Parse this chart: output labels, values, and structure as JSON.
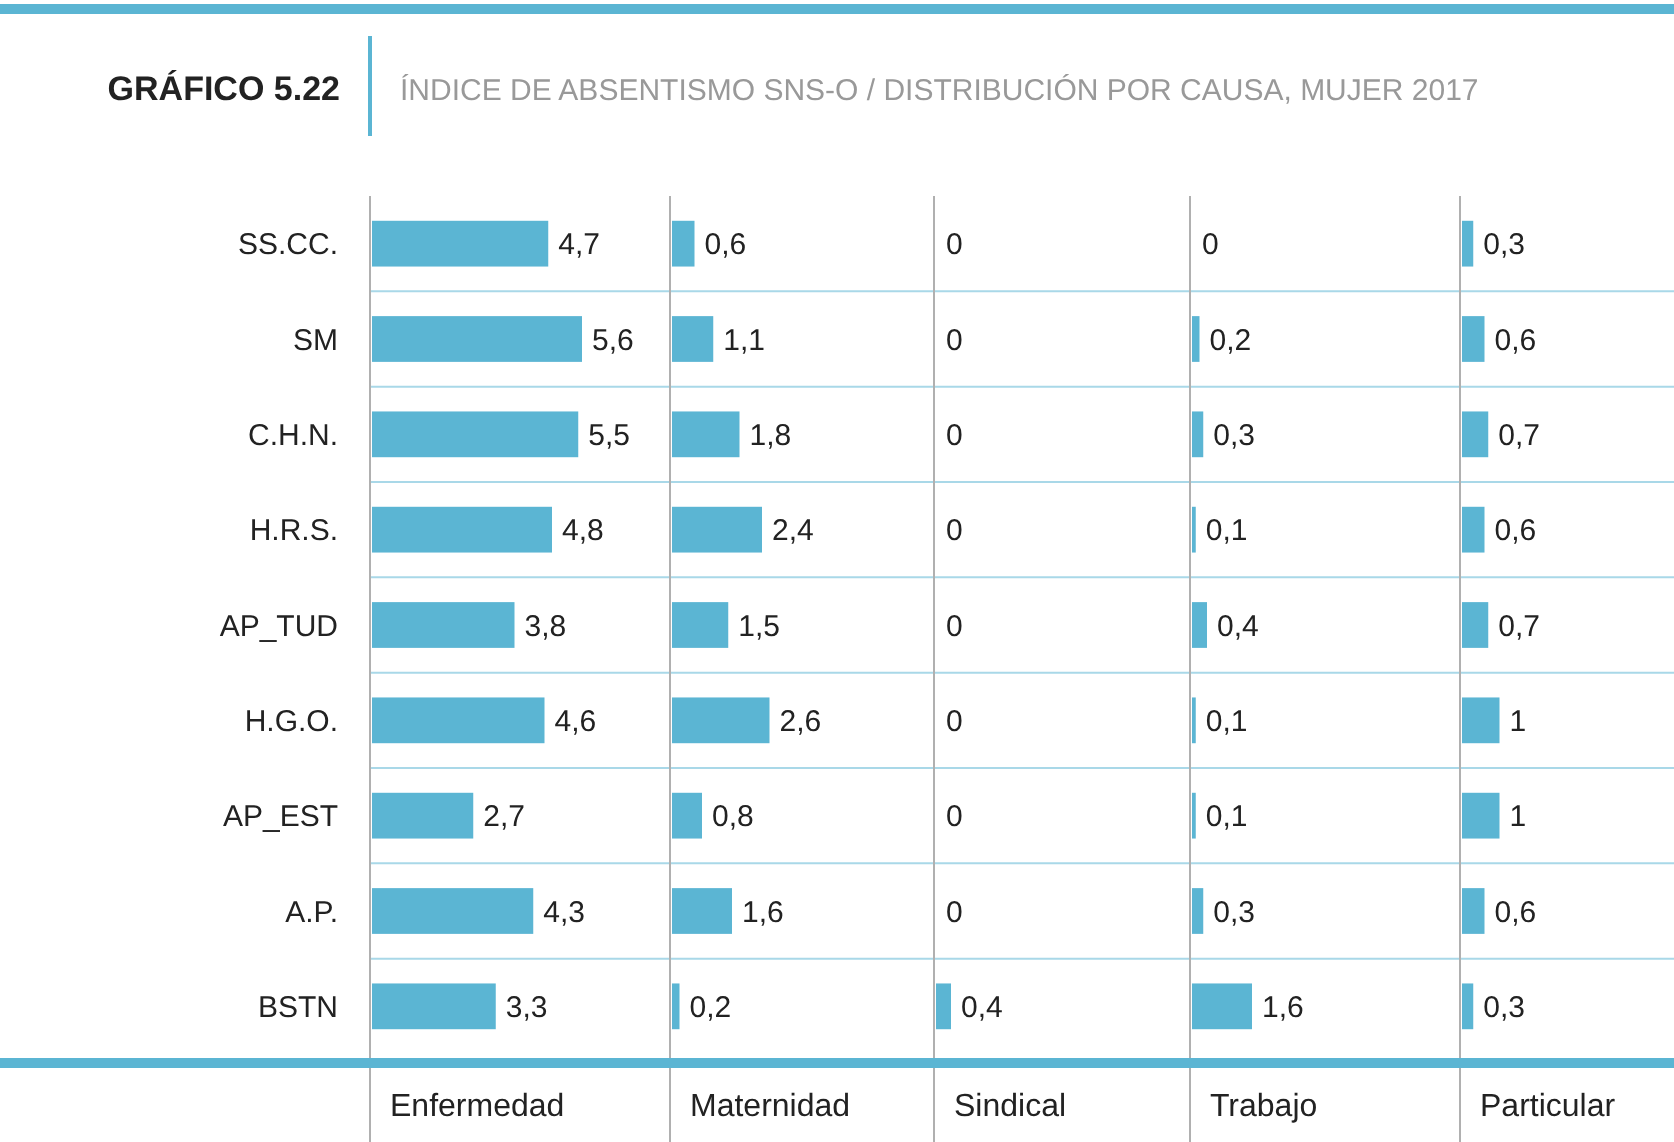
{
  "chart_data": [
    {
      "type": "bar",
      "orientation": "horizontal",
      "title": "GRÁFICO 5.22",
      "subtitle": "ÍNDICE DE ABSENTISMO SNS-O / DISTRIBUCIÓN POR CAUSA, MUJER 2017",
      "xlabel": "Enfermedad",
      "categories": [
        "SS.CC.",
        "SM",
        "C.H.N.",
        "H.R.S.",
        "AP_TUD",
        "H.G.O.",
        "AP_EST",
        "A.P.",
        "BSTN"
      ],
      "values": [
        4.7,
        5.6,
        5.5,
        4.8,
        3.8,
        4.6,
        2.7,
        4.3,
        3.3
      ],
      "value_labels": [
        "4,7",
        "5,6",
        "5,5",
        "4,8",
        "3,8",
        "4,6",
        "2,7",
        "4,3",
        "3,3"
      ],
      "color": "#5bb5d3",
      "grid": "y"
    },
    {
      "type": "bar",
      "orientation": "horizontal",
      "xlabel": "Maternidad",
      "categories": [
        null,
        null,
        null,
        null,
        null,
        null,
        null,
        null,
        null
      ],
      "values": [
        0.6,
        1.1,
        1.8,
        2.4,
        1.5,
        2.6,
        0.8,
        1.6,
        0.2
      ],
      "value_labels": [
        "0,6",
        "1,1",
        "1,8",
        "2,4",
        "1,5",
        "2,6",
        "0,8",
        "1,6",
        "0,2"
      ],
      "color": "#5bb5d3",
      "grid": "y"
    },
    {
      "type": "bar",
      "orientation": "horizontal",
      "xlabel": "Sindical",
      "categories": [
        null,
        null,
        null,
        null,
        null,
        null,
        null,
        null,
        null
      ],
      "values": [
        0,
        0,
        0,
        0,
        0,
        0,
        0,
        0,
        0.4
      ],
      "value_labels": [
        "0",
        "0",
        "0",
        "0",
        "0",
        "0",
        "0",
        "0",
        "0,4"
      ],
      "color": "#5bb5d3",
      "grid": "y"
    },
    {
      "type": "bar",
      "orientation": "horizontal",
      "xlabel": "Trabajo",
      "categories": [
        null,
        null,
        null,
        null,
        null,
        null,
        null,
        null,
        null
      ],
      "values": [
        0,
        0.2,
        0.3,
        0.1,
        0.4,
        0.1,
        0.1,
        0.3,
        1.6
      ],
      "value_labels": [
        "0",
        "0,2",
        "0,3",
        "0,1",
        "0,4",
        "0,1",
        "0,1",
        "0,3",
        "1,6"
      ],
      "color": "#5bb5d3",
      "grid": "y"
    },
    {
      "type": "bar",
      "orientation": "horizontal",
      "xlabel": "Particular",
      "categories": [
        null,
        null,
        null,
        null,
        null,
        null,
        null,
        null,
        null
      ],
      "values": [
        0.3,
        0.6,
        0.7,
        0.6,
        0.7,
        1,
        1,
        0.6,
        0.3
      ],
      "value_labels": [
        "0,3",
        "0,6",
        "0,7",
        "0,6",
        "0,7",
        "1",
        "1",
        "0,6",
        "0,3"
      ],
      "color": "#5bb5d3",
      "grid": "y"
    }
  ]
}
